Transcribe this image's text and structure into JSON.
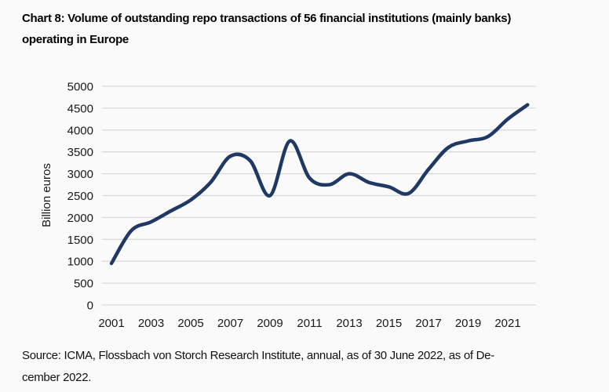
{
  "figure": {
    "title_line1": "Chart 8: Volume of outstanding repo transactions of 56 financial institutions (mainly banks)",
    "title_line2": "operating in Europe",
    "source_line1": "Source: ICMA, Flossbach von Storch Research Institute, annual, as of 30 June 2022, as of De-",
    "source_line2": "cember 2022."
  },
  "chart_data": {
    "type": "line",
    "title": "Chart 8: Volume of outstanding repo transactions of 56 financial institutions (mainly banks) operating in Europe",
    "xlabel": "",
    "ylabel": "Billion euros",
    "x": [
      2001,
      2002,
      2003,
      2004,
      2005,
      2006,
      2007,
      2008,
      2009,
      2010,
      2011,
      2012,
      2013,
      2014,
      2015,
      2016,
      2017,
      2018,
      2019,
      2020,
      2021,
      2022
    ],
    "values": [
      950,
      1700,
      1900,
      2150,
      2400,
      2800,
      3400,
      3300,
      2500,
      3750,
      2900,
      2750,
      3000,
      2800,
      2700,
      2550,
      3100,
      3600,
      3750,
      3850,
      4250,
      4575
    ],
    "ylim": [
      0,
      5000
    ],
    "ytick_step": 500,
    "xticks": [
      2001,
      2003,
      2005,
      2007,
      2009,
      2011,
      2013,
      2015,
      2017,
      2019,
      2021
    ],
    "grid": "horizontal",
    "legend": "none",
    "smooth": true,
    "line_color": "#1f3864",
    "gridline_color": "#d9d9d9",
    "background_color": "#fafafa"
  }
}
